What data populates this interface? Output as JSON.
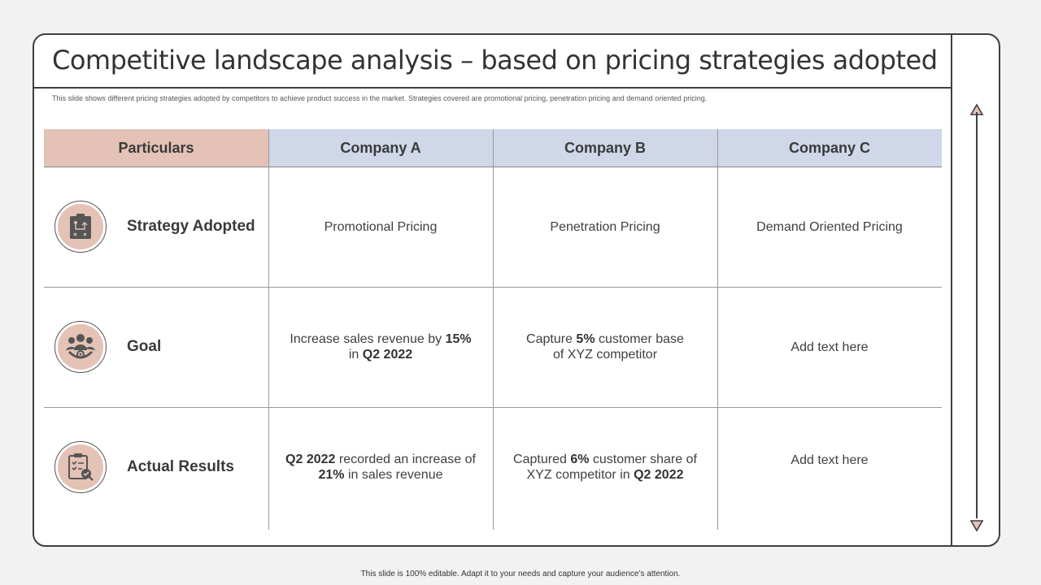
{
  "slide": {
    "title": "Competitive landscape analysis – based on pricing strategies adopted",
    "subtitle": "This slide shows different pricing strategies adopted by competitors to achieve product success in the market. Strategies covered are promotional pricing, penetration pricing and demand oriented pricing.",
    "footer": "This slide is 100% editable.  Adapt it to your needs and capture your audience’s attention."
  },
  "table": {
    "headers": [
      "Particulars",
      "Company A",
      "Company B",
      "Company C"
    ],
    "rows": [
      {
        "label": "Strategy Adopted",
        "icon": "strategy-board-icon",
        "cells": [
          {
            "pre": "Promotional Pricing"
          },
          {
            "pre": "Penetration Pricing"
          },
          {
            "pre": "Demand Oriented Pricing"
          }
        ]
      },
      {
        "label": "Goal",
        "icon": "team-target-icon",
        "cells": [
          {
            "pre": "Increase  sales revenue  by ",
            "b1": "15%",
            "mid": " in ",
            "b2": "Q2 2022"
          },
          {
            "pre": "Capture ",
            "b1": "5%",
            "mid": " customer base of XYZ competitor"
          },
          {
            "pre": "Add text here"
          }
        ]
      },
      {
        "label": "Actual Results",
        "icon": "clipboard-check-icon",
        "cells": [
          {
            "b1": "Q2 2022",
            "mid": " recorded an increase of ",
            "b2": "21%",
            "post": "  in sales revenue"
          },
          {
            "pre": "Captured ",
            "b1": "6%",
            "mid": " customer share of XYZ  competitor in ",
            "b2": "Q2 2022"
          },
          {
            "pre": "Add text here"
          }
        ]
      }
    ]
  },
  "colors": {
    "particulars_header": "#e4c2b6",
    "company_header": "#cfd7e8",
    "frame_border": "#3f3f3f"
  },
  "scrollbar": {
    "up_icon": "triangle-up-icon",
    "down_icon": "triangle-down-icon"
  }
}
